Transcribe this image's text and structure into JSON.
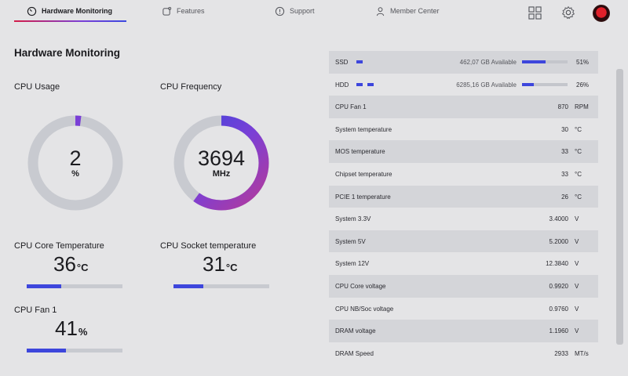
{
  "nav": {
    "tabs": [
      {
        "label": "Hardware Monitoring"
      },
      {
        "label": "Features"
      },
      {
        "label": "Support"
      },
      {
        "label": "Member Center"
      }
    ]
  },
  "page_title": "Hardware Monitoring",
  "cpu_usage": {
    "label": "CPU Usage",
    "value": "2",
    "unit": "%",
    "fraction": 0.02
  },
  "cpu_frequency": {
    "label": "CPU Frequency",
    "value": "3694",
    "unit": "MHz",
    "fraction": 0.6
  },
  "core_temp": {
    "label": "CPU Core Temperature",
    "value": "36",
    "unit": "°C",
    "fraction": 0.36
  },
  "socket_temp": {
    "label": "CPU Socket temperature",
    "value": "31",
    "unit": "°C",
    "fraction": 0.31
  },
  "cpu_fan": {
    "label": "CPU Fan 1",
    "value": "41",
    "unit": "%",
    "fraction": 0.41
  },
  "storage": [
    {
      "name": "SSD",
      "available": "462,07 GB Available",
      "percent": "51%",
      "fraction": 0.51
    },
    {
      "name": "HDD",
      "available": "6285,16 GB Available",
      "percent": "26%",
      "fraction": 0.26
    }
  ],
  "sensors": [
    {
      "name": "CPU Fan 1",
      "value": "870",
      "unit": "RPM"
    },
    {
      "name": "System temperature",
      "value": "30",
      "unit": "°C"
    },
    {
      "name": "MOS temperature",
      "value": "33",
      "unit": "°C"
    },
    {
      "name": "Chipset temperature",
      "value": "33",
      "unit": "°C"
    },
    {
      "name": "PCIE 1 temperature",
      "value": "26",
      "unit": "°C"
    },
    {
      "name": "System 3.3V",
      "value": "3.4000",
      "unit": "V"
    },
    {
      "name": "System 5V",
      "value": "5.2000",
      "unit": "V"
    },
    {
      "name": "System 12V",
      "value": "12.3840",
      "unit": "V"
    },
    {
      "name": "CPU Core voltage",
      "value": "0.9920",
      "unit": "V"
    },
    {
      "name": "CPU NB/Soc voltage",
      "value": "0.9760",
      "unit": "V"
    },
    {
      "name": "DRAM voltage",
      "value": "1.1960",
      "unit": "V"
    },
    {
      "name": "DRAM Speed",
      "value": "2933",
      "unit": "MT/s"
    }
  ],
  "icons": {
    "tab_0": "speedometer-icon",
    "tab_1": "features-icon",
    "tab_2": "support-icon",
    "tab_3": "user-icon",
    "apps": "grid-icon",
    "settings": "gear-icon",
    "profile": "avatar-icon"
  },
  "colors": {
    "accent": "#3d46dc",
    "gauge_track": "#c8cad0",
    "gauge_grad_start": "#7a3fd6",
    "gauge_grad_end": "#3d46dc"
  }
}
